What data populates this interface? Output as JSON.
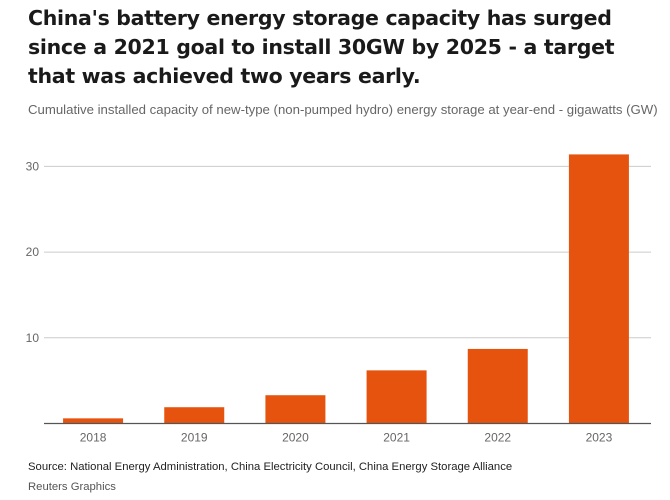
{
  "title": "China's battery energy storage capacity has surged since a 2021 goal to install 30GW by 2025 - a target that was achieved two years early.",
  "subtitle": "Cumulative installed capacity of new-type (non-pumped hydro) energy storage at year-end - gigawatts (GW)",
  "source": "Source: National Energy Administration, China Electricity Council, China Energy Storage Alliance",
  "credit": "Reuters Graphics",
  "colors": {
    "bar": "#e5530f",
    "grid": "#cccccc",
    "axis": "#555555"
  },
  "chart_data": {
    "type": "bar",
    "title": "China's battery energy storage capacity has surged since a 2021 goal to install 30GW by 2025 - a target that was achieved two years early.",
    "subtitle": "Cumulative installed capacity of new-type (non-pumped hydro) energy storage at year-end - gigawatts (GW)",
    "categories": [
      "2018",
      "2019",
      "2020",
      "2021",
      "2022",
      "2023"
    ],
    "values": [
      0.6,
      1.9,
      3.3,
      6.2,
      8.7,
      31.4
    ],
    "xlabel": "",
    "ylabel": "Gigawatts (GW)",
    "ylim": [
      0,
      32
    ],
    "yticks": [
      10,
      20,
      30
    ],
    "grid": true,
    "legend": "none"
  }
}
